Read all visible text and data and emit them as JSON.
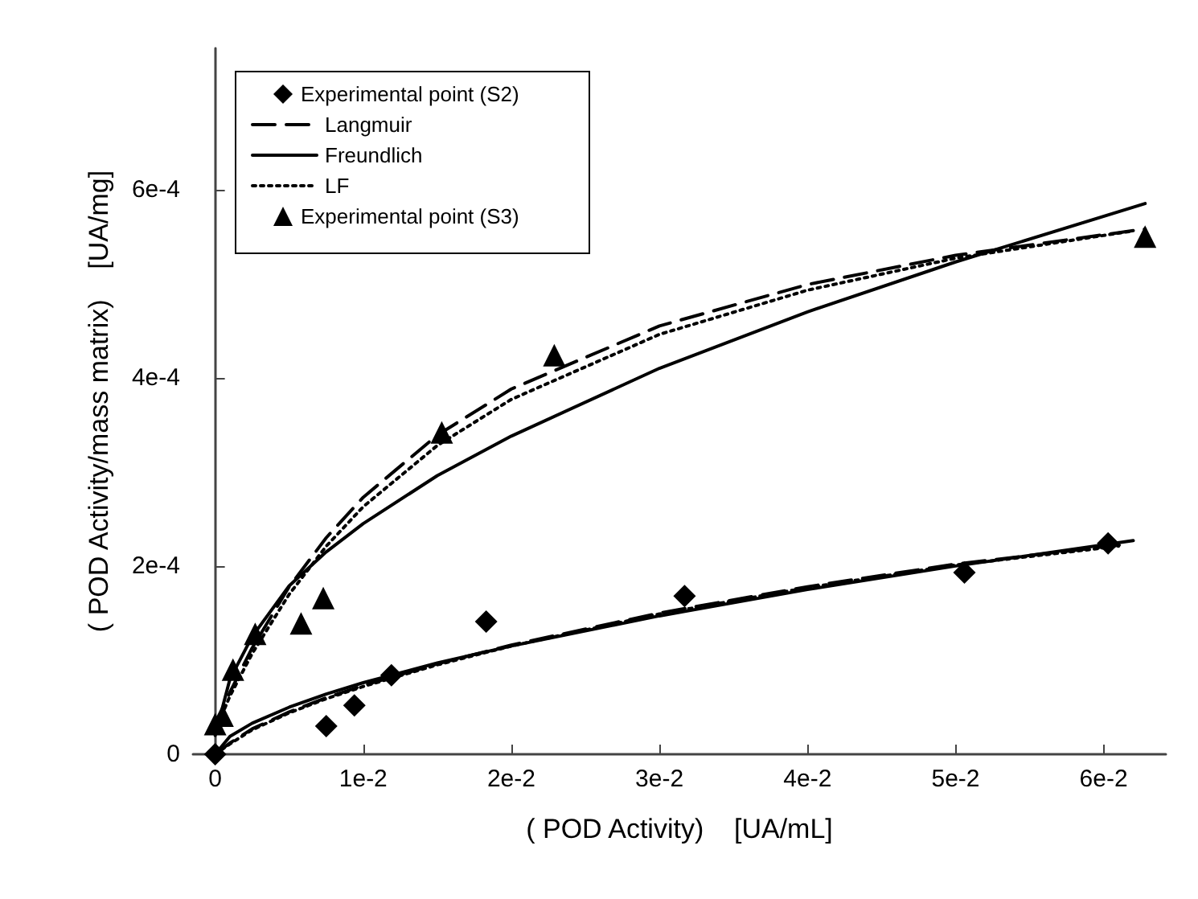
{
  "chart_data": {
    "type": "scatter",
    "xlabel": "( POD Activity)    [UA/mL]",
    "ylabel": "( POD Activity/mass matrix)    [UA/mg]",
    "xlim": [
      -0.0015,
      0.0642
    ],
    "ylim": [
      0,
      0.00075
    ],
    "xticks": [
      0,
      {
        "value": 0.01,
        "label": "1e-2"
      },
      {
        "value": 0.02,
        "label": "2e-2"
      },
      {
        "value": 0.03,
        "label": "3e-2"
      },
      {
        "value": 0.04,
        "label": "4e-2"
      },
      {
        "value": 0.05,
        "label": "5e-2"
      },
      {
        "value": 0.06,
        "label": "6e-2"
      }
    ],
    "yticks": [
      0,
      {
        "value": 0.0002,
        "label": "2e-4"
      },
      {
        "value": 0.0004,
        "label": "4e-4"
      },
      {
        "value": 0.0006,
        "label": "6e-4"
      }
    ],
    "grid": false,
    "legend": "top left",
    "series": [
      {
        "name": "Experimental point (S2)",
        "marker": "diamond",
        "color": "#000000",
        "x": [
          0,
          0.0075,
          0.0094,
          0.0119,
          0.0183,
          0.0317,
          0.0506,
          0.0603
        ],
        "values": [
          0,
          3e-05,
          5.2e-05,
          8.4e-05,
          0.000141,
          0.000168,
          0.000193,
          0.000224
        ]
      },
      {
        "name": "Langmuir",
        "type": "line",
        "marker": "none",
        "line_style": "dashed",
        "color": "#000000",
        "x": [
          0,
          0.001,
          0.0025,
          0.005,
          0.0075,
          0.01,
          0.015,
          0.02,
          0.03,
          0.04,
          0.05,
          0.0628
        ],
        "values": [
          3e-05,
          6.6e-05,
          0.000113,
          0.000178,
          0.00023,
          0.000273,
          0.000339,
          0.000388,
          0.000455,
          0.000499,
          0.00053,
          0.000558
        ]
      },
      {
        "name": "Freundlich",
        "type": "line",
        "marker": "none",
        "line_style": "solid",
        "color": "#000000",
        "x": [
          0,
          0.001,
          0.0025,
          0.005,
          0.0075,
          0.01,
          0.015,
          0.02,
          0.03,
          0.04,
          0.05,
          0.0628
        ],
        "values": [
          2e-05,
          8e-05,
          0.000125,
          0.000179,
          0.000215,
          0.000245,
          0.000296,
          0.000338,
          0.00041,
          0.00047,
          0.000523,
          0.000585
        ]
      },
      {
        "name": "LF",
        "type": "line",
        "marker": "none",
        "line_style": "dotted",
        "color": "#000000",
        "x": [
          0,
          0.001,
          0.0025,
          0.005,
          0.0075,
          0.01,
          0.015,
          0.02,
          0.03,
          0.04,
          0.05,
          0.062
        ],
        "values": [
          2.5e-05,
          6.2e-05,
          0.000107,
          0.00017,
          0.000221,
          0.000263,
          0.000328,
          0.000377,
          0.000446,
          0.000493,
          0.000527,
          0.000556
        ]
      },
      {
        "name": "Experimental point (S3)",
        "marker": "triangle",
        "color": "#000000",
        "x": [
          0,
          0.0005,
          0.0012,
          0.0027,
          0.0058,
          0.0073,
          0.0153,
          0.0229,
          0.0628
        ],
        "values": [
          3.2e-05,
          4.1e-05,
          9e-05,
          0.000128,
          0.000139,
          0.000166,
          0.000342,
          0.000424,
          0.00055
        ]
      },
      {
        "type": "line",
        "marker": "none",
        "line_style": "dashed",
        "color": "#000000",
        "x": [
          0,
          0.001,
          0.0025,
          0.005,
          0.0075,
          0.01,
          0.015,
          0.02,
          0.03,
          0.04,
          0.05,
          0.0615
        ],
        "values": [
          0,
          1.2e-05,
          2.7e-05,
          4.5e-05,
          6e-05,
          7.3e-05,
          9.6e-05,
          0.000116,
          0.00015,
          0.000178,
          0.000202,
          0.000223
        ]
      },
      {
        "type": "line",
        "marker": "none",
        "line_style": "solid",
        "color": "#000000",
        "x": [
          0,
          0.001,
          0.0025,
          0.005,
          0.0075,
          0.01,
          0.015,
          0.02,
          0.03,
          0.04,
          0.05,
          0.062
        ],
        "values": [
          0,
          1.9e-05,
          3.3e-05,
          5e-05,
          6.4e-05,
          7.6e-05,
          9.7e-05,
          0.000115,
          0.000147,
          0.000175,
          0.0002,
          0.000227
        ]
      },
      {
        "type": "line",
        "marker": "none",
        "line_style": "dotted",
        "color": "#000000",
        "x": [
          0,
          0.001,
          0.0025,
          0.005,
          0.0075,
          0.01,
          0.015,
          0.02,
          0.03,
          0.04,
          0.05,
          0.061
        ],
        "values": [
          0,
          1.1e-05,
          2.6e-05,
          4.4e-05,
          5.9e-05,
          7.2e-05,
          9.5e-05,
          0.000115,
          0.000149,
          0.000177,
          0.000201,
          0.000221
        ]
      }
    ]
  }
}
